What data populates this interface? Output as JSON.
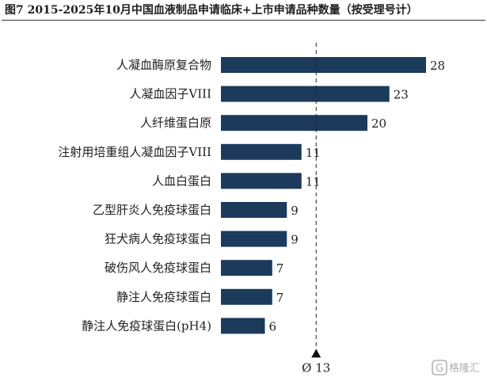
{
  "title": "图7 2015-2025年10月中国血液制品申请临床+上市申请品种数量（按受理号计）",
  "chart_data": {
    "type": "bar",
    "orientation": "horizontal",
    "categories": [
      "人凝血酶原复合物",
      "人凝血因子VIII",
      "人纤维蛋白原",
      "注射用培重组人凝血因子VIII",
      "人血白蛋白",
      "乙型肝炎人免疫球蛋白",
      "狂犬病人免疫球蛋白",
      "破伤风人免疫球蛋白",
      "静注人免疫球蛋白",
      "静注人免疫球蛋白(pH4)"
    ],
    "values": [
      28,
      23,
      20,
      11,
      11,
      9,
      9,
      7,
      7,
      6
    ],
    "xlim": [
      0,
      30
    ],
    "average": {
      "value": 13,
      "label": "Ø 13"
    },
    "grid": false,
    "bar_color": "#1b3a5c"
  },
  "watermark": {
    "brand": "格隆汇",
    "brand_color": "#b0b0b0"
  }
}
